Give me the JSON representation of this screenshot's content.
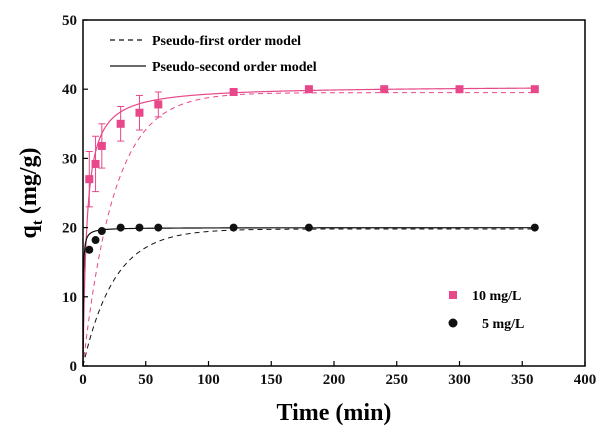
{
  "chart_data": {
    "type": "scatter",
    "xlabel": "Time (min)",
    "ylabel": "q",
    "ylabel_subscript": "t",
    "ylabel_unit": " (mg/g)",
    "xlim": [
      0,
      400
    ],
    "ylim": [
      0,
      50
    ],
    "xticks": [
      0,
      50,
      100,
      150,
      200,
      250,
      300,
      350,
      400
    ],
    "yticks": [
      0,
      10,
      20,
      30,
      40,
      50
    ],
    "grid": false,
    "legend_position": "bottom-right",
    "model_legend_position": "top-left",
    "model_legend": [
      {
        "label": "Pseudo-first order model",
        "style": "dashed"
      },
      {
        "label": "Pseudo-second order model",
        "style": "solid"
      }
    ],
    "series": [
      {
        "name": "10 mg/L",
        "marker": "square",
        "color": "#e8478a",
        "x": [
          5,
          10,
          15,
          30,
          45,
          60,
          120,
          180,
          240,
          300,
          360
        ],
        "y": [
          27.0,
          29.2,
          31.8,
          35.0,
          36.6,
          37.8,
          39.6,
          40.0,
          40.0,
          40.0,
          40.0
        ],
        "error": [
          4.0,
          4.0,
          3.2,
          2.5,
          2.5,
          1.8,
          0.0,
          0.0,
          0.0,
          0.0,
          0.0
        ],
        "first_order_fit": {
          "qe": 39.5,
          "k1": 0.04
        },
        "second_order_fit": {
          "qe": 40.5,
          "k2": 0.008
        }
      },
      {
        "name": "5 mg/L",
        "marker": "circle",
        "color": "#111111",
        "x": [
          5,
          10,
          15,
          30,
          45,
          60,
          120,
          180,
          360
        ],
        "y": [
          16.8,
          18.2,
          19.5,
          20.0,
          20.0,
          20.0,
          20.0,
          20.0,
          20.0
        ],
        "error": [
          0,
          0,
          0,
          0,
          0,
          0,
          0,
          0,
          0
        ],
        "first_order_fit": {
          "qe": 19.8,
          "k1": 0.04
        },
        "second_order_fit": {
          "qe": 20.0,
          "k2": 0.2
        }
      }
    ]
  }
}
